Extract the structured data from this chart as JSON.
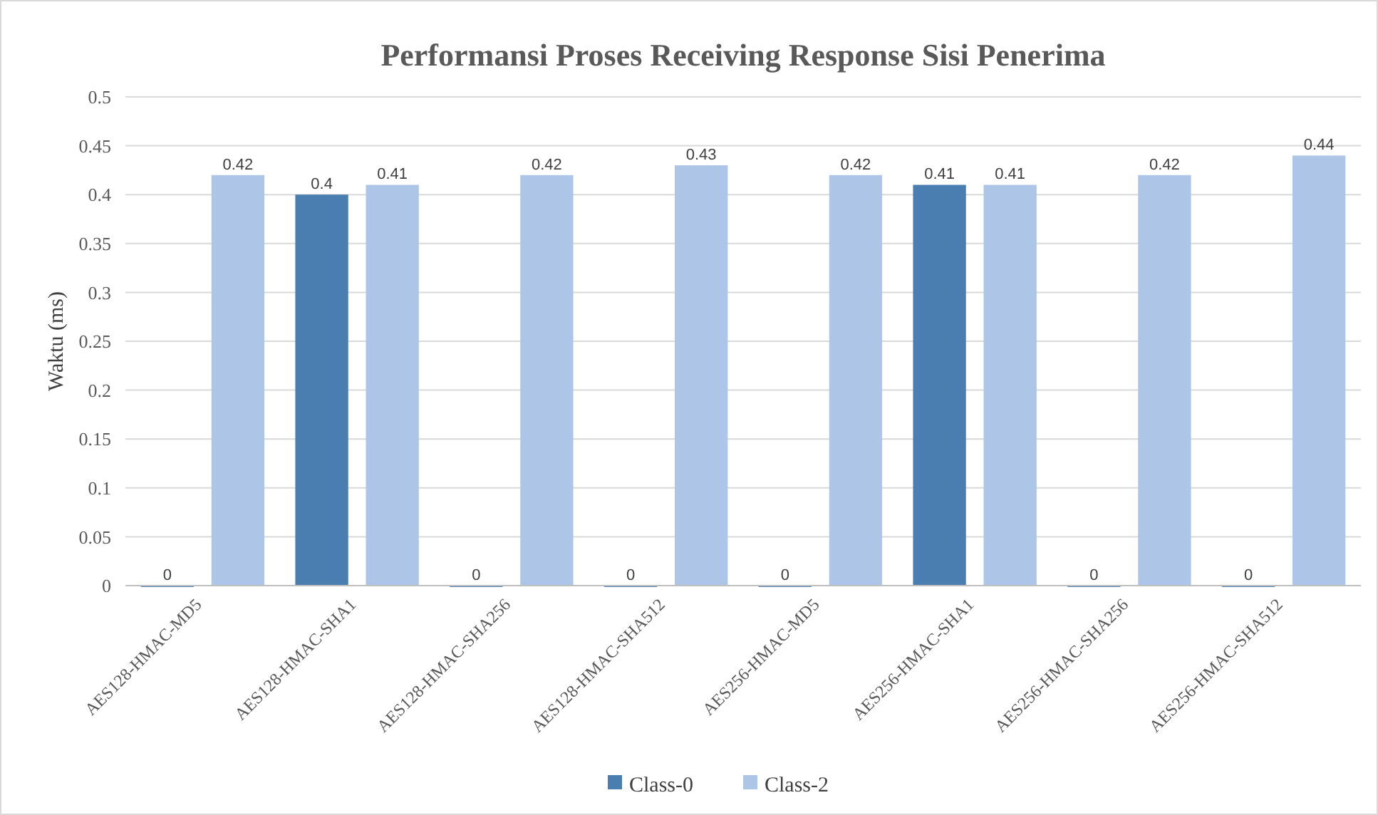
{
  "chart_data": {
    "type": "bar",
    "title": "Performansi Proses Receiving Response Sisi Penerima",
    "ylabel": "Waktu (ms)",
    "categories": [
      "AES128-HMAC-MD5",
      "AES128-HMAC-SHA1",
      "AES128-HMAC-SHA256",
      "AES128-HMAC-SHA512",
      "AES256-HMAC-MD5",
      "AES256-HMAC-SHA1",
      "AES256-HMAC-SHA256",
      "AES256-HMAC-SHA512"
    ],
    "series": [
      {
        "name": "Class-0",
        "color": "#4a7eb0",
        "values": [
          0,
          0.4,
          0,
          0,
          0,
          0.41,
          0,
          0
        ]
      },
      {
        "name": "Class-2",
        "color": "#adc5e6",
        "values": [
          0.42,
          0.41,
          0.42,
          0.43,
          0.42,
          0.41,
          0.42,
          0.44
        ]
      }
    ],
    "ylim": [
      0,
      0.5
    ],
    "yticks": [
      0,
      0.05,
      0.1,
      0.15,
      0.2,
      0.25,
      0.3,
      0.35,
      0.4,
      0.45,
      0.5
    ],
    "grid": "y",
    "legend": "bottom",
    "data_labels": true
  }
}
